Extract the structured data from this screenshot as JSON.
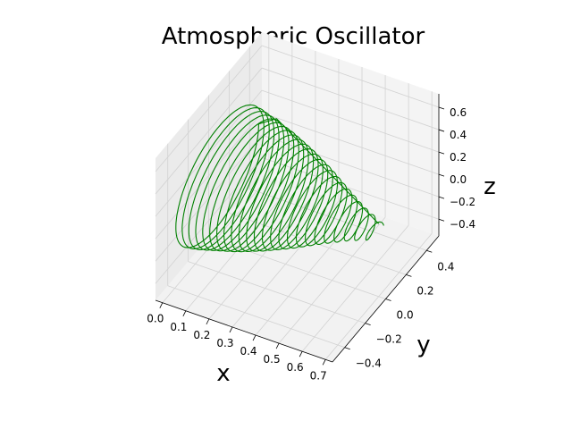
{
  "chart_data": {
    "type": "line3d",
    "title": "Atmospheric Oscillator",
    "xlabel": "x",
    "ylabel": "y",
    "zlabel": "z",
    "x_ticks": [
      "0.0",
      "0.1",
      "0.2",
      "0.3",
      "0.4",
      "0.5",
      "0.6",
      "0.7"
    ],
    "y_ticks": [
      "−0.4",
      "−0.2",
      "0.0",
      "0.2",
      "0.4"
    ],
    "z_ticks": [
      "−0.4",
      "−0.2",
      "0.0",
      "0.2",
      "0.4",
      "0.6"
    ],
    "xlim": [
      -0.03,
      0.73
    ],
    "ylim": [
      -0.52,
      0.52
    ],
    "zlim": [
      -0.55,
      0.72
    ],
    "grid": true,
    "series": [
      {
        "color": "#008000",
        "description_points": {
          "x": [
            0.7,
            0.6,
            0.5,
            0.4,
            0.3,
            0.2,
            0.1,
            0.05,
            0.0
          ],
          "y_amplitude": [
            0.05,
            0.1,
            0.17,
            0.24,
            0.3,
            0.35,
            0.39,
            0.41,
            0.42
          ],
          "z_amplitude": [
            0.05,
            0.11,
            0.18,
            0.26,
            0.33,
            0.39,
            0.43,
            0.45,
            0.46
          ]
        }
      }
    ]
  },
  "colors": {
    "line": "#008000",
    "pane": "#f2f2f2",
    "grid": "#d2d2d2"
  }
}
